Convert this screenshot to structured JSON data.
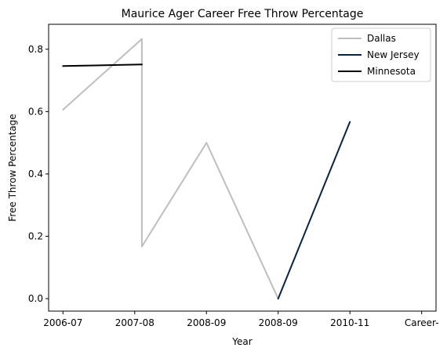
{
  "chart_data": {
    "type": "line",
    "title": "Maurice Ager Career Free Throw Percentage",
    "xlabel": "Year",
    "ylabel": "Free Throw Percentage",
    "x_ticks": [
      "2006-07",
      "2007-08",
      "2008-09",
      "2008-09",
      "2010-11",
      "Career-"
    ],
    "y_ticks": [
      "0.0",
      "0.2",
      "0.4",
      "0.6",
      "0.8"
    ],
    "xlim": [
      -0.2,
      5.2
    ],
    "ylim": [
      -0.04,
      0.88
    ],
    "grid": false,
    "legend_position": "top-right",
    "series": [
      {
        "name": "Dallas",
        "color": "#bebebe",
        "points": [
          {
            "x": 0,
            "y": 0.606
          },
          {
            "x": 1.1,
            "y": 0.833
          },
          {
            "x": 1.1,
            "y": 0.167
          },
          {
            "x": 2.0,
            "y": 0.5
          },
          {
            "x": 3.0,
            "y": 0.0
          }
        ]
      },
      {
        "name": "New Jersey",
        "color": "#0c2340",
        "points": [
          {
            "x": 3.0,
            "y": 0.0
          },
          {
            "x": 4.0,
            "y": 0.567
          }
        ]
      },
      {
        "name": "Minnesota",
        "color": "#000000",
        "points": [
          {
            "x": 0,
            "y": 0.746
          },
          {
            "x": 1.1,
            "y": 0.751
          }
        ]
      }
    ]
  }
}
